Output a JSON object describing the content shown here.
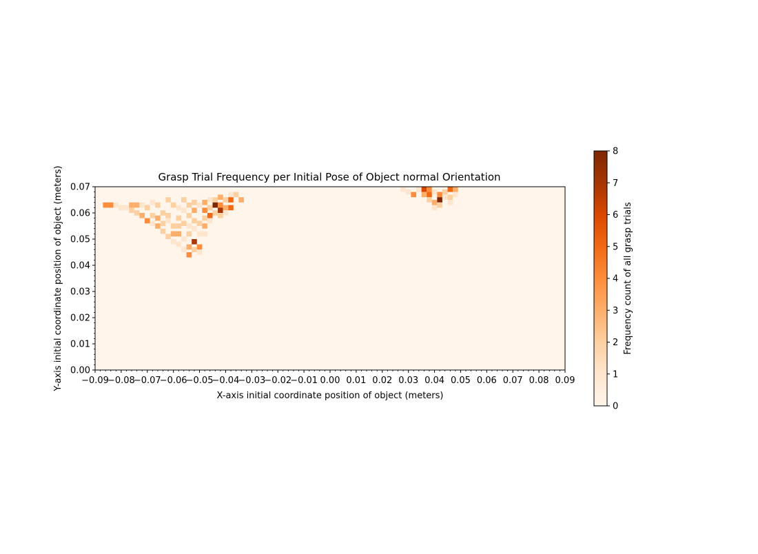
{
  "chart_data": {
    "type": "heatmap",
    "title": "Grasp Trial Frequency per Initial Pose of Object normal Orientation",
    "xlabel": "X-axis initial coordinate position of object (meters)",
    "ylabel": "Y-axis initial coordinate position of object (meters)",
    "xlim": [
      -0.09,
      0.09
    ],
    "ylim": [
      0.0,
      0.07
    ],
    "xticks": [
      "−0.09",
      "−0.08",
      "−0.07",
      "−0.06",
      "−0.05",
      "−0.04",
      "−0.03",
      "−0.02",
      "−0.01",
      "0.00",
      "0.01",
      "0.02",
      "0.03",
      "0.04",
      "0.05",
      "0.06",
      "0.07",
      "0.08",
      "0.09"
    ],
    "yticks": [
      "0.00",
      "0.01",
      "0.02",
      "0.03",
      "0.04",
      "0.05",
      "0.06",
      "0.07"
    ],
    "bin_size": 0.002,
    "colorbar": {
      "label": "Frequency count of all grasp trials",
      "range": [
        0,
        8
      ],
      "ticks": [
        "0",
        "1",
        "2",
        "3",
        "4",
        "5",
        "6",
        "7",
        "8"
      ],
      "colormap": "Oranges"
    },
    "background_color": "#fff5eb",
    "cells": [
      {
        "x": -0.086,
        "y": 0.063,
        "count": 4
      },
      {
        "x": -0.084,
        "y": 0.063,
        "count": 4
      },
      {
        "x": -0.082,
        "y": 0.063,
        "count": 1
      },
      {
        "x": -0.08,
        "y": 0.062,
        "count": 1
      },
      {
        "x": -0.078,
        "y": 0.062,
        "count": 1
      },
      {
        "x": -0.076,
        "y": 0.063,
        "count": 3
      },
      {
        "x": -0.074,
        "y": 0.063,
        "count": 3
      },
      {
        "x": -0.076,
        "y": 0.061,
        "count": 2
      },
      {
        "x": -0.074,
        "y": 0.06,
        "count": 2
      },
      {
        "x": -0.072,
        "y": 0.063,
        "count": 1
      },
      {
        "x": -0.072,
        "y": 0.059,
        "count": 3
      },
      {
        "x": -0.07,
        "y": 0.062,
        "count": 2
      },
      {
        "x": -0.07,
        "y": 0.057,
        "count": 4
      },
      {
        "x": -0.068,
        "y": 0.064,
        "count": 1
      },
      {
        "x": -0.068,
        "y": 0.059,
        "count": 2
      },
      {
        "x": -0.068,
        "y": 0.056,
        "count": 1
      },
      {
        "x": -0.066,
        "y": 0.063,
        "count": 2
      },
      {
        "x": -0.066,
        "y": 0.058,
        "count": 3
      },
      {
        "x": -0.066,
        "y": 0.055,
        "count": 3
      },
      {
        "x": -0.064,
        "y": 0.06,
        "count": 2
      },
      {
        "x": -0.064,
        "y": 0.056,
        "count": 2
      },
      {
        "x": -0.064,
        "y": 0.053,
        "count": 2
      },
      {
        "x": -0.062,
        "y": 0.065,
        "count": 2
      },
      {
        "x": -0.062,
        "y": 0.059,
        "count": 2
      },
      {
        "x": -0.062,
        "y": 0.057,
        "count": 1
      },
      {
        "x": -0.062,
        "y": 0.051,
        "count": 2
      },
      {
        "x": -0.06,
        "y": 0.063,
        "count": 2
      },
      {
        "x": -0.06,
        "y": 0.055,
        "count": 2
      },
      {
        "x": -0.06,
        "y": 0.052,
        "count": 3
      },
      {
        "x": -0.06,
        "y": 0.049,
        "count": 1
      },
      {
        "x": -0.058,
        "y": 0.062,
        "count": 1
      },
      {
        "x": -0.058,
        "y": 0.058,
        "count": 2
      },
      {
        "x": -0.058,
        "y": 0.055,
        "count": 2
      },
      {
        "x": -0.058,
        "y": 0.052,
        "count": 3
      },
      {
        "x": -0.058,
        "y": 0.048,
        "count": 1
      },
      {
        "x": -0.056,
        "y": 0.065,
        "count": 2
      },
      {
        "x": -0.056,
        "y": 0.061,
        "count": 1
      },
      {
        "x": -0.056,
        "y": 0.056,
        "count": 2
      },
      {
        "x": -0.056,
        "y": 0.05,
        "count": 1
      },
      {
        "x": -0.056,
        "y": 0.046,
        "count": 1
      },
      {
        "x": -0.054,
        "y": 0.063,
        "count": 2
      },
      {
        "x": -0.054,
        "y": 0.059,
        "count": 2
      },
      {
        "x": -0.054,
        "y": 0.055,
        "count": 1
      },
      {
        "x": -0.054,
        "y": 0.052,
        "count": 2
      },
      {
        "x": -0.054,
        "y": 0.047,
        "count": 3
      },
      {
        "x": -0.054,
        "y": 0.044,
        "count": 4
      },
      {
        "x": -0.052,
        "y": 0.064,
        "count": 2
      },
      {
        "x": -0.052,
        "y": 0.061,
        "count": 3
      },
      {
        "x": -0.052,
        "y": 0.057,
        "count": 2
      },
      {
        "x": -0.052,
        "y": 0.054,
        "count": 1
      },
      {
        "x": -0.052,
        "y": 0.049,
        "count": 7
      },
      {
        "x": -0.052,
        "y": 0.046,
        "count": 2
      },
      {
        "x": -0.05,
        "y": 0.063,
        "count": 1
      },
      {
        "x": -0.05,
        "y": 0.056,
        "count": 2
      },
      {
        "x": -0.05,
        "y": 0.052,
        "count": 1
      },
      {
        "x": -0.05,
        "y": 0.047,
        "count": 4
      },
      {
        "x": -0.05,
        "y": 0.045,
        "count": 1
      },
      {
        "x": -0.048,
        "y": 0.064,
        "count": 3
      },
      {
        "x": -0.048,
        "y": 0.061,
        "count": 4
      },
      {
        "x": -0.048,
        "y": 0.058,
        "count": 2
      },
      {
        "x": -0.048,
        "y": 0.055,
        "count": 3
      },
      {
        "x": -0.048,
        "y": 0.052,
        "count": 1
      },
      {
        "x": -0.046,
        "y": 0.065,
        "count": 1
      },
      {
        "x": -0.046,
        "y": 0.062,
        "count": 2
      },
      {
        "x": -0.046,
        "y": 0.059,
        "count": 5
      },
      {
        "x": -0.046,
        "y": 0.057,
        "count": 1
      },
      {
        "x": -0.044,
        "y": 0.065,
        "count": 2
      },
      {
        "x": -0.044,
        "y": 0.063,
        "count": 8
      },
      {
        "x": -0.044,
        "y": 0.06,
        "count": 2
      },
      {
        "x": -0.042,
        "y": 0.066,
        "count": 3
      },
      {
        "x": -0.042,
        "y": 0.063,
        "count": 4
      },
      {
        "x": -0.042,
        "y": 0.061,
        "count": 7
      },
      {
        "x": -0.042,
        "y": 0.059,
        "count": 2
      },
      {
        "x": -0.04,
        "y": 0.065,
        "count": 2
      },
      {
        "x": -0.04,
        "y": 0.062,
        "count": 3
      },
      {
        "x": -0.04,
        "y": 0.06,
        "count": 1
      },
      {
        "x": -0.038,
        "y": 0.067,
        "count": 1
      },
      {
        "x": -0.038,
        "y": 0.065,
        "count": 5
      },
      {
        "x": -0.038,
        "y": 0.062,
        "count": 5
      },
      {
        "x": -0.036,
        "y": 0.067,
        "count": 2
      },
      {
        "x": -0.034,
        "y": 0.065,
        "count": 3
      },
      {
        "x": 0.028,
        "y": 0.069,
        "count": 1
      },
      {
        "x": 0.03,
        "y": 0.068,
        "count": 1
      },
      {
        "x": 0.032,
        "y": 0.067,
        "count": 4
      },
      {
        "x": 0.034,
        "y": 0.069,
        "count": 1
      },
      {
        "x": 0.036,
        "y": 0.069,
        "count": 6
      },
      {
        "x": 0.036,
        "y": 0.067,
        "count": 3
      },
      {
        "x": 0.038,
        "y": 0.069,
        "count": 4
      },
      {
        "x": 0.038,
        "y": 0.067,
        "count": 5
      },
      {
        "x": 0.038,
        "y": 0.065,
        "count": 2
      },
      {
        "x": 0.04,
        "y": 0.068,
        "count": 1
      },
      {
        "x": 0.04,
        "y": 0.064,
        "count": 3
      },
      {
        "x": 0.04,
        "y": 0.062,
        "count": 1
      },
      {
        "x": 0.042,
        "y": 0.067,
        "count": 4
      },
      {
        "x": 0.042,
        "y": 0.065,
        "count": 8
      },
      {
        "x": 0.042,
        "y": 0.063,
        "count": 2
      },
      {
        "x": 0.044,
        "y": 0.068,
        "count": 2
      },
      {
        "x": 0.044,
        "y": 0.066,
        "count": 1
      },
      {
        "x": 0.046,
        "y": 0.069,
        "count": 5
      },
      {
        "x": 0.046,
        "y": 0.066,
        "count": 2
      },
      {
        "x": 0.046,
        "y": 0.064,
        "count": 1
      },
      {
        "x": 0.048,
        "y": 0.069,
        "count": 3
      },
      {
        "x": 0.048,
        "y": 0.067,
        "count": 1
      }
    ]
  }
}
